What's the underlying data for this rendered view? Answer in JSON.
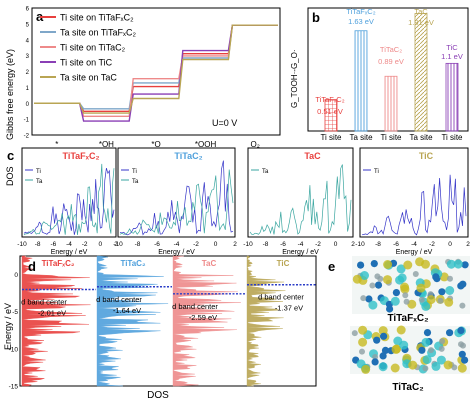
{
  "panels": {
    "a": {
      "letter": "a",
      "ylabel": "Gibbs free energy (eV)",
      "annotation": "U=0 V",
      "chart_data": {
        "type": "line",
        "categories": [
          "*",
          "*OH",
          "*O",
          "*OOH",
          "O₂"
        ],
        "ylim": [
          -2,
          6
        ],
        "yticks": [
          -2,
          -1,
          0,
          1,
          2,
          3,
          4,
          5,
          6
        ],
        "legend_position": "top-left",
        "series": [
          {
            "name": "Ti site on TiTaFₓC₂",
            "color": "#e8403e",
            "values": [
              0,
              -0.51,
              1.05,
              3.12,
              4.92
            ]
          },
          {
            "name": "Ta site on TiTaFₓC₂",
            "color": "#7fa7c9",
            "values": [
              0,
              -0.35,
              1.28,
              2.85,
              4.92
            ]
          },
          {
            "name": "Ti site on TiTaC₂",
            "color": "#ee8a8a",
            "values": [
              0,
              -0.82,
              1.55,
              2.98,
              4.92
            ]
          },
          {
            "name": "Ti site on TiC",
            "color": "#8a3fb5",
            "values": [
              0,
              -1.12,
              0.58,
              3.32,
              4.92
            ]
          },
          {
            "name": "Ta site on TaC",
            "color": "#b9a553",
            "values": [
              0,
              -0.62,
              0.3,
              2.75,
              4.92
            ]
          }
        ]
      }
    },
    "b": {
      "letter": "b",
      "chart_data": {
        "type": "bar",
        "ylabel": "G_TOOH·-G_O·",
        "ylim": [
          0,
          2
        ],
        "categories": [
          "Ti site",
          "Ta site",
          "Ti site",
          "Ta site",
          "Ti site"
        ],
        "values": [
          0.51,
          1.63,
          0.89,
          1.91,
          1.1
        ],
        "series": [
          {
            "name": "TiTaFₓC₂",
            "value_label": "0.51 eV",
            "color": "#e8403e",
            "hatch": "grid"
          },
          {
            "name": "TiTaFₓC₂",
            "value_label": "1.63 eV",
            "color": "#4fa0dc",
            "hatch": "vert"
          },
          {
            "name": "TiTaC₂",
            "value_label": "0.89 eV",
            "color": "#ee8a8a",
            "hatch": "vert"
          },
          {
            "name": "TaC",
            "value_label": "1.91 eV",
            "color": "#b9a553",
            "hatch": "diag"
          },
          {
            "name": "TiC",
            "value_label": "1.1 eV",
            "color": "#8a3fb5",
            "hatch": "vert"
          }
        ]
      }
    },
    "c": {
      "letter": "c",
      "ylabel": "DOS",
      "xlabel": "Energy / eV",
      "xticks": [
        -10,
        -8,
        -6,
        -4,
        -2,
        0,
        2
      ],
      "xlim": [
        -10,
        2
      ],
      "chart_data": [
        {
          "type": "line",
          "title": "TiTaFₓC₂",
          "title_color": "#e8403e",
          "series": [
            {
              "name": "Ti",
              "color": "#3535c8"
            },
            {
              "name": "Ta",
              "color": "#3aa6a0"
            }
          ]
        },
        {
          "type": "line",
          "title": "TiTaC₂",
          "title_color": "#4fa0dc",
          "series": [
            {
              "name": "Ti",
              "color": "#3535c8"
            },
            {
              "name": "Ta",
              "color": "#3aa6a0"
            }
          ]
        },
        {
          "type": "line",
          "title": "TaC",
          "title_color": "#e8403e",
          "series": [
            {
              "name": "Ta",
              "color": "#3aa6a0"
            }
          ]
        },
        {
          "type": "line",
          "title": "TiC",
          "title_color": "#b9a553",
          "series": [
            {
              "name": "Ti",
              "color": "#3535c8"
            }
          ]
        }
      ]
    },
    "d": {
      "letter": "d",
      "ylabel": "Energy / eV",
      "xlabel": "DOS",
      "ylim": [
        -15,
        2.5
      ],
      "yticks": [
        -15,
        -10,
        -5,
        0
      ],
      "chart_data": {
        "type": "area",
        "series": [
          {
            "name": "TiTaFₓC₂",
            "color": "#e8403e",
            "dband_label": "d band center",
            "dband_value": "-2.01 eV",
            "dband_center": -2.01
          },
          {
            "name": "TiTaC₂",
            "color": "#4fa0dc",
            "dband_label": "d band center",
            "dband_value": "-1.64 eV",
            "dband_center": -1.64
          },
          {
            "name": "TaC",
            "color": "#ee8a8a",
            "dband_label": "d band center",
            "dband_value": "-2.59 eV",
            "dband_center": -2.59
          },
          {
            "name": "TiC",
            "color": "#b9a553",
            "dband_label": "d band center",
            "dband_value": "-1.37 eV",
            "dband_center": -1.37
          }
        ]
      }
    },
    "e": {
      "letter": "e",
      "structures": [
        {
          "label": "TiTaFₓC₂"
        },
        {
          "label": "TiTaC₂"
        }
      ]
    }
  }
}
